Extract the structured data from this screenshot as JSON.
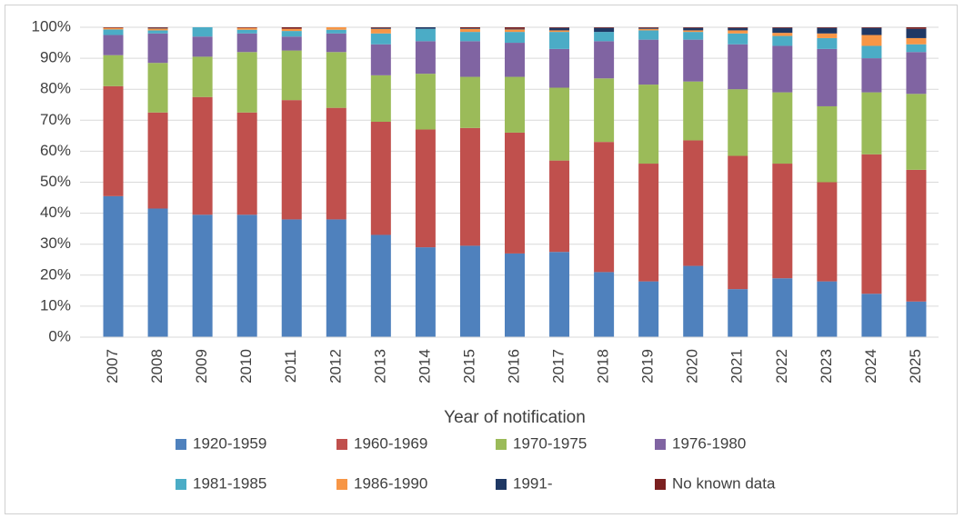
{
  "chart_data": {
    "type": "stacked_bar_percent",
    "x_label": "Year of notification",
    "categories": [
      "2007",
      "2008",
      "2009",
      "2010",
      "2011",
      "2012",
      "2013",
      "2014",
      "2015",
      "2016",
      "2017",
      "2018",
      "2019",
      "2020",
      "2021",
      "2022",
      "2023",
      "2024",
      "2025"
    ],
    "ylim": [
      0,
      100
    ],
    "yticks": [
      {
        "value": 0,
        "label": "0%"
      },
      {
        "value": 10,
        "label": "10%"
      },
      {
        "value": 20,
        "label": "20%"
      },
      {
        "value": 30,
        "label": "30%"
      },
      {
        "value": 40,
        "label": "40%"
      },
      {
        "value": 50,
        "label": "50%"
      },
      {
        "value": 60,
        "label": "60%"
      },
      {
        "value": 70,
        "label": "70%"
      },
      {
        "value": 80,
        "label": "80%"
      },
      {
        "value": 90,
        "label": "90%"
      },
      {
        "value": 100,
        "label": "100%"
      }
    ],
    "grid": true,
    "legend": "bottom",
    "series": [
      {
        "name": "1920-1959",
        "color": "#4f81bd",
        "values": [
          45.5,
          41.5,
          39.5,
          39.5,
          38,
          38,
          33,
          29,
          29.5,
          27,
          27.5,
          21,
          18,
          23,
          15.5,
          19,
          18,
          14,
          11.5
        ]
      },
      {
        "name": "1960-1969",
        "color": "#c0504d",
        "values": [
          35.5,
          31,
          38,
          33,
          38.5,
          36,
          36.5,
          38,
          38,
          39,
          29.5,
          42,
          38,
          40.5,
          43,
          37,
          32,
          45,
          42.5
        ]
      },
      {
        "name": "1970-1975",
        "color": "#9bbb59",
        "values": [
          10,
          16,
          13,
          19.5,
          16,
          18,
          15,
          18,
          16.5,
          18,
          23.5,
          20.5,
          25.5,
          19,
          21.5,
          23,
          24.5,
          20,
          24.5
        ]
      },
      {
        "name": "1976-1980",
        "color": "#8064a2",
        "values": [
          6.5,
          9.5,
          6.5,
          6,
          4.5,
          6,
          10,
          10.5,
          11.5,
          11,
          12.5,
          12,
          14.5,
          13.5,
          14.5,
          15,
          18.5,
          11,
          13.5
        ]
      },
      {
        "name": "1981-1985",
        "color": "#4bacc6",
        "values": [
          1.8,
          1,
          3,
          1.2,
          1.8,
          1.2,
          3.5,
          4,
          3,
          3.5,
          5.5,
          3,
          3,
          2.5,
          3.5,
          3.2,
          3.5,
          4,
          2.5
        ]
      },
      {
        "name": "1986-1990",
        "color": "#f79646",
        "values": [
          0.5,
          0.6,
          0,
          0.6,
          0.7,
          0.8,
          1.5,
          0,
          1,
          0.8,
          0.5,
          0,
          0.5,
          0.5,
          1,
          1,
          1.5,
          3.5,
          2
        ]
      },
      {
        "name": "1991-",
        "color": "#1f3864",
        "values": [
          0,
          0.2,
          0,
          0,
          0,
          0,
          0.3,
          0.5,
          0.2,
          0.2,
          0.8,
          1.3,
          0.3,
          0.8,
          0.8,
          1.6,
          1.8,
          2.3,
          3
        ]
      },
      {
        "name": "No known data",
        "color": "#7b2020",
        "values": [
          0.2,
          0.2,
          0,
          0.2,
          0.5,
          0,
          0.2,
          0,
          0.3,
          0.5,
          0.2,
          0.2,
          0.2,
          0.2,
          0.2,
          0.2,
          0.2,
          0.2,
          0.5
        ]
      }
    ]
  }
}
